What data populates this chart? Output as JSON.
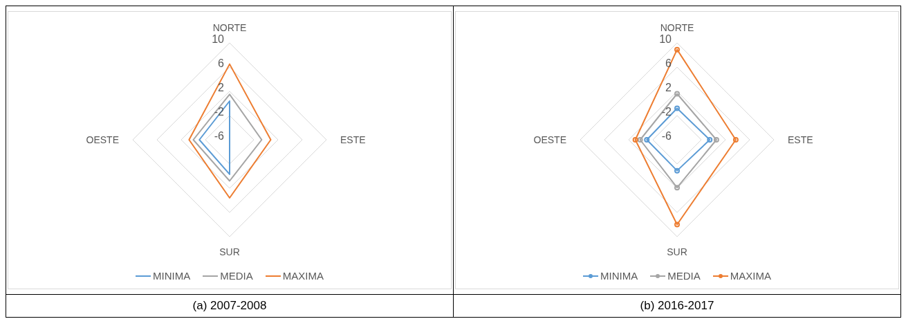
{
  "chart_data": [
    {
      "type": "radar",
      "title": "(a) 2007-2008",
      "categories": [
        "NORTE",
        "ESTE",
        "SUR",
        "OESTE"
      ],
      "ylim": [
        -6,
        10
      ],
      "yticks": [
        -6,
        -2,
        2,
        6,
        10
      ],
      "grid": true,
      "legend": "bottom",
      "marker": "none",
      "series": [
        {
          "name": "MINIMA",
          "color": "#5b9bd5",
          "values": [
            0.4,
            -6,
            -0.3,
            -1.0
          ]
        },
        {
          "name": "MEDIA",
          "color": "#a5a5a5",
          "values": [
            1.5,
            -0.7,
            0.8,
            0.0
          ]
        },
        {
          "name": "MAXIMA",
          "color": "#ed7d31",
          "values": [
            6.5,
            0.8,
            3.6,
            0.7
          ]
        }
      ]
    },
    {
      "type": "radar",
      "title": "(b) 2016-2017",
      "categories": [
        "NORTE",
        "ESTE",
        "SUR",
        "OESTE"
      ],
      "ylim": [
        -6,
        10
      ],
      "yticks": [
        -6,
        -2,
        2,
        6,
        10
      ],
      "grid": true,
      "legend": "bottom",
      "marker": "circle",
      "series": [
        {
          "name": "MINIMA",
          "color": "#5b9bd5",
          "values": [
            -0.8,
            -0.6,
            -0.9,
            -1.0
          ]
        },
        {
          "name": "MEDIA",
          "color": "#a5a5a5",
          "values": [
            1.6,
            0.5,
            1.9,
            0.1
          ]
        },
        {
          "name": "MAXIMA",
          "color": "#ed7d31",
          "values": [
            8.9,
            3.7,
            8.0,
            0.9
          ]
        }
      ]
    }
  ]
}
